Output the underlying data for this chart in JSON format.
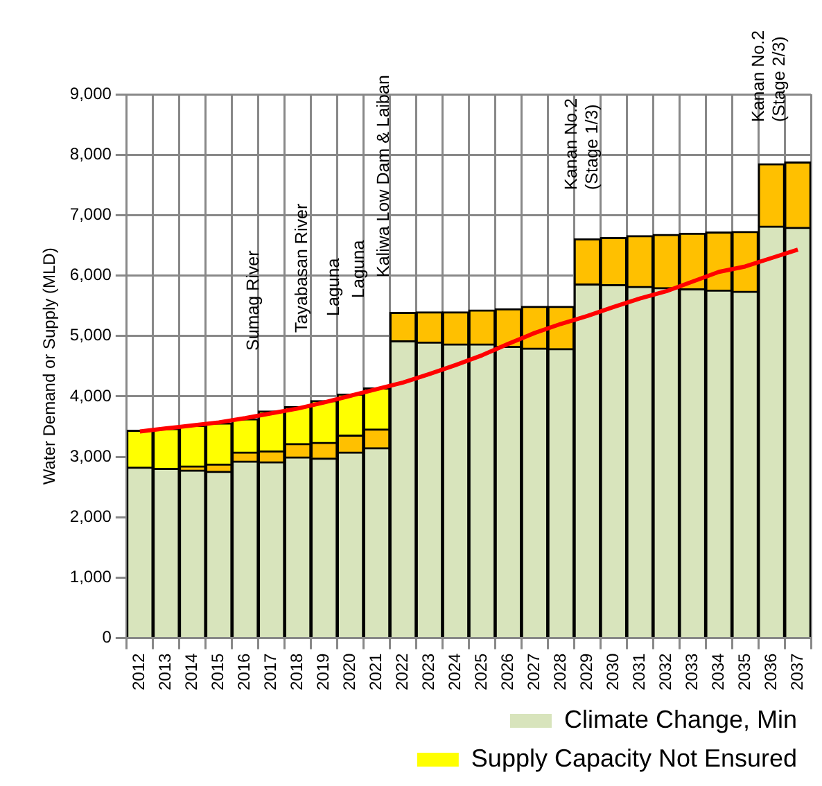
{
  "chart_data": {
    "type": "bar",
    "stacked": true,
    "ylabel": "Water Demand or Supply (MLD)",
    "categories": [
      "2012",
      "2013",
      "2014",
      "2015",
      "2016",
      "2017",
      "2018",
      "2019",
      "2020",
      "2021",
      "2022",
      "2023",
      "2024",
      "2025",
      "2026",
      "2027",
      "2028",
      "2029",
      "2030",
      "2031",
      "2032",
      "2033",
      "2034",
      "2035",
      "2036",
      "2037"
    ],
    "series": [
      {
        "name": "Climate Change, Min",
        "color": "#d8e4bc",
        "values": [
          2830,
          2810,
          2780,
          2760,
          2930,
          2920,
          3000,
          2980,
          3080,
          3150,
          4920,
          4900,
          4870,
          4870,
          4830,
          4800,
          4790,
          5860,
          5850,
          5820,
          5800,
          5780,
          5760,
          5740,
          6820,
          6800
        ]
      },
      {
        "color": "#ffc000",
        "values": [
          0,
          null,
          70,
          120,
          150,
          180,
          220,
          260,
          280,
          310,
          470,
          500,
          530,
          560,
          620,
          690,
          700,
          750,
          780,
          840,
          880,
          920,
          960,
          990,
          1030,
          1080
        ]
      },
      {
        "name": "Supply Capacity Not Ensured",
        "color": "#ffff00",
        "values": [
          610,
          660,
          670,
          680,
          550,
          660,
          610,
          690,
          680,
          680,
          0,
          0,
          0,
          0,
          0,
          0,
          0,
          0,
          0,
          0,
          0,
          0,
          0,
          0,
          0,
          0
        ]
      },
      {
        "type": "line",
        "color": "#ff0000",
        "values": [
          3420,
          3470,
          3520,
          3570,
          3640,
          3720,
          3800,
          3900,
          4010,
          4120,
          4230,
          4370,
          4520,
          4680,
          4870,
          5050,
          5200,
          5330,
          5480,
          5620,
          5740,
          5900,
          6060,
          6150,
          6290,
          6430
        ]
      }
    ],
    "ylim": [
      0,
      9000
    ],
    "yticks": [
      {
        "value": 0,
        "label": "0"
      },
      {
        "value": 1000,
        "label": "1,000"
      },
      {
        "value": 2000,
        "label": "2,000"
      },
      {
        "value": 3000,
        "label": "3,000"
      },
      {
        "value": 4000,
        "label": "4,000"
      },
      {
        "value": 5000,
        "label": "5,000"
      },
      {
        "value": 6000,
        "label": "6,000"
      },
      {
        "value": 7000,
        "label": "7,000"
      },
      {
        "value": 8000,
        "label": "8,000"
      },
      {
        "value": 9000,
        "label": "9,000"
      }
    ],
    "grid": true,
    "legend": "bottom right",
    "marker": "none",
    "line_style": "solid",
    "annotations": [
      "Sumag River",
      "Tayabasan River",
      "Laguna",
      "Laguna",
      "Kaliwa Low Dam & Laiban",
      "Kanan No.2\n(Stage 1/3)",
      "Kanan No.2\n(Stage 2/3)"
    ]
  }
}
